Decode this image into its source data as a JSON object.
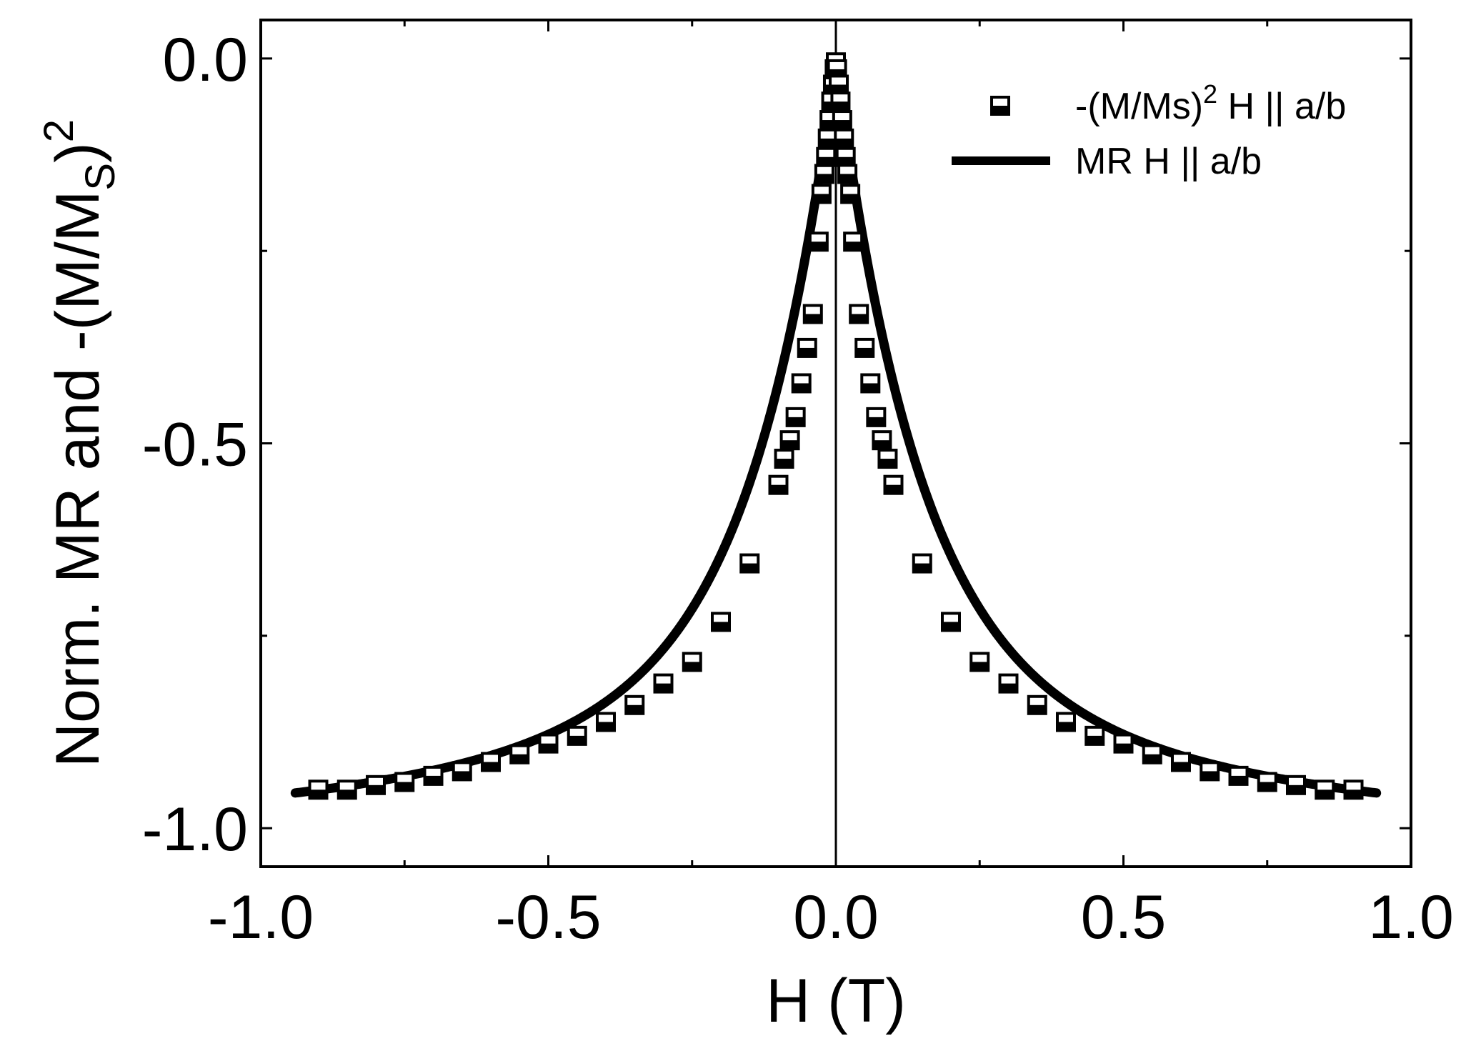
{
  "chart_data": {
    "type": "scatter",
    "title": "",
    "xlabel": "H (T)",
    "ylabel": {
      "main": "Norm. MR and -(M/M",
      "subscript": "S",
      "close": ")",
      "superscript": "2"
    },
    "xlim": [
      -1.0,
      1.0
    ],
    "ylim": [
      -1.05,
      0.05
    ],
    "x_ticks": [
      -1.0,
      -0.5,
      0.0,
      0.5,
      1.0
    ],
    "x_tick_labels": [
      "-1.0",
      "-0.5",
      "0.0",
      "0.5",
      "1.0"
    ],
    "y_ticks": [
      0.0,
      -0.5,
      -1.0
    ],
    "y_tick_labels": [
      "0.0",
      "-0.5",
      "-1.0"
    ],
    "x_minor_ticks": [
      -0.75,
      -0.25,
      0.25,
      0.75
    ],
    "y_minor_ticks": [
      -0.25,
      -0.75
    ],
    "zero_line_x": 0.0,
    "grid": false,
    "legend_position": "top-right",
    "series": [
      {
        "name": "-(M/Ms)² H || a/b",
        "legend_main": "-(M/Ms)",
        "legend_sup": "2",
        "legend_rest": " H || a/b",
        "marker": "half-filled-square",
        "points": [
          [
            -0.9,
            -0.95
          ],
          [
            -0.85,
            -0.95
          ],
          [
            -0.8,
            -0.944
          ],
          [
            -0.75,
            -0.94
          ],
          [
            -0.7,
            -0.932
          ],
          [
            -0.65,
            -0.926
          ],
          [
            -0.6,
            -0.914
          ],
          [
            -0.55,
            -0.904
          ],
          [
            -0.5,
            -0.89
          ],
          [
            -0.45,
            -0.88
          ],
          [
            -0.4,
            -0.862
          ],
          [
            -0.35,
            -0.84
          ],
          [
            -0.3,
            -0.812
          ],
          [
            -0.25,
            -0.784
          ],
          [
            -0.2,
            -0.732
          ],
          [
            -0.15,
            -0.656
          ],
          [
            -0.1,
            -0.554
          ],
          [
            -0.09,
            -0.52
          ],
          [
            -0.08,
            -0.496
          ],
          [
            -0.07,
            -0.466
          ],
          [
            -0.06,
            -0.422
          ],
          [
            -0.05,
            -0.376
          ],
          [
            -0.04,
            -0.332
          ],
          [
            -0.03,
            -0.238
          ],
          [
            -0.025,
            -0.176
          ],
          [
            -0.02,
            -0.15
          ],
          [
            -0.017,
            -0.128
          ],
          [
            -0.014,
            -0.104
          ],
          [
            -0.011,
            -0.08
          ],
          [
            -0.008,
            -0.056
          ],
          [
            -0.005,
            -0.034
          ],
          [
            -0.002,
            -0.014
          ],
          [
            0.0,
            -0.005
          ],
          [
            0.002,
            -0.014
          ],
          [
            0.005,
            -0.034
          ],
          [
            0.008,
            -0.056
          ],
          [
            0.011,
            -0.08
          ],
          [
            0.014,
            -0.104
          ],
          [
            0.017,
            -0.128
          ],
          [
            0.02,
            -0.15
          ],
          [
            0.025,
            -0.176
          ],
          [
            0.03,
            -0.238
          ],
          [
            0.04,
            -0.332
          ],
          [
            0.05,
            -0.376
          ],
          [
            0.06,
            -0.422
          ],
          [
            0.07,
            -0.466
          ],
          [
            0.08,
            -0.496
          ],
          [
            0.09,
            -0.52
          ],
          [
            0.1,
            -0.554
          ],
          [
            0.15,
            -0.656
          ],
          [
            0.2,
            -0.732
          ],
          [
            0.25,
            -0.784
          ],
          [
            0.3,
            -0.812
          ],
          [
            0.35,
            -0.84
          ],
          [
            0.4,
            -0.862
          ],
          [
            0.45,
            -0.88
          ],
          [
            0.5,
            -0.89
          ],
          [
            0.55,
            -0.904
          ],
          [
            0.6,
            -0.914
          ],
          [
            0.65,
            -0.926
          ],
          [
            0.7,
            -0.932
          ],
          [
            0.75,
            -0.94
          ],
          [
            0.8,
            -0.944
          ],
          [
            0.85,
            -0.95
          ],
          [
            0.9,
            -0.95
          ]
        ]
      },
      {
        "name": "MR H || a/b",
        "legend_main": "MR H || a/b",
        "style": "thick-line",
        "x_range": [
          -0.94,
          0.94
        ],
        "notes": "symmetric cusp, peak 0.0 at H=0, about -0.99 at |H|=0.94"
      }
    ]
  }
}
